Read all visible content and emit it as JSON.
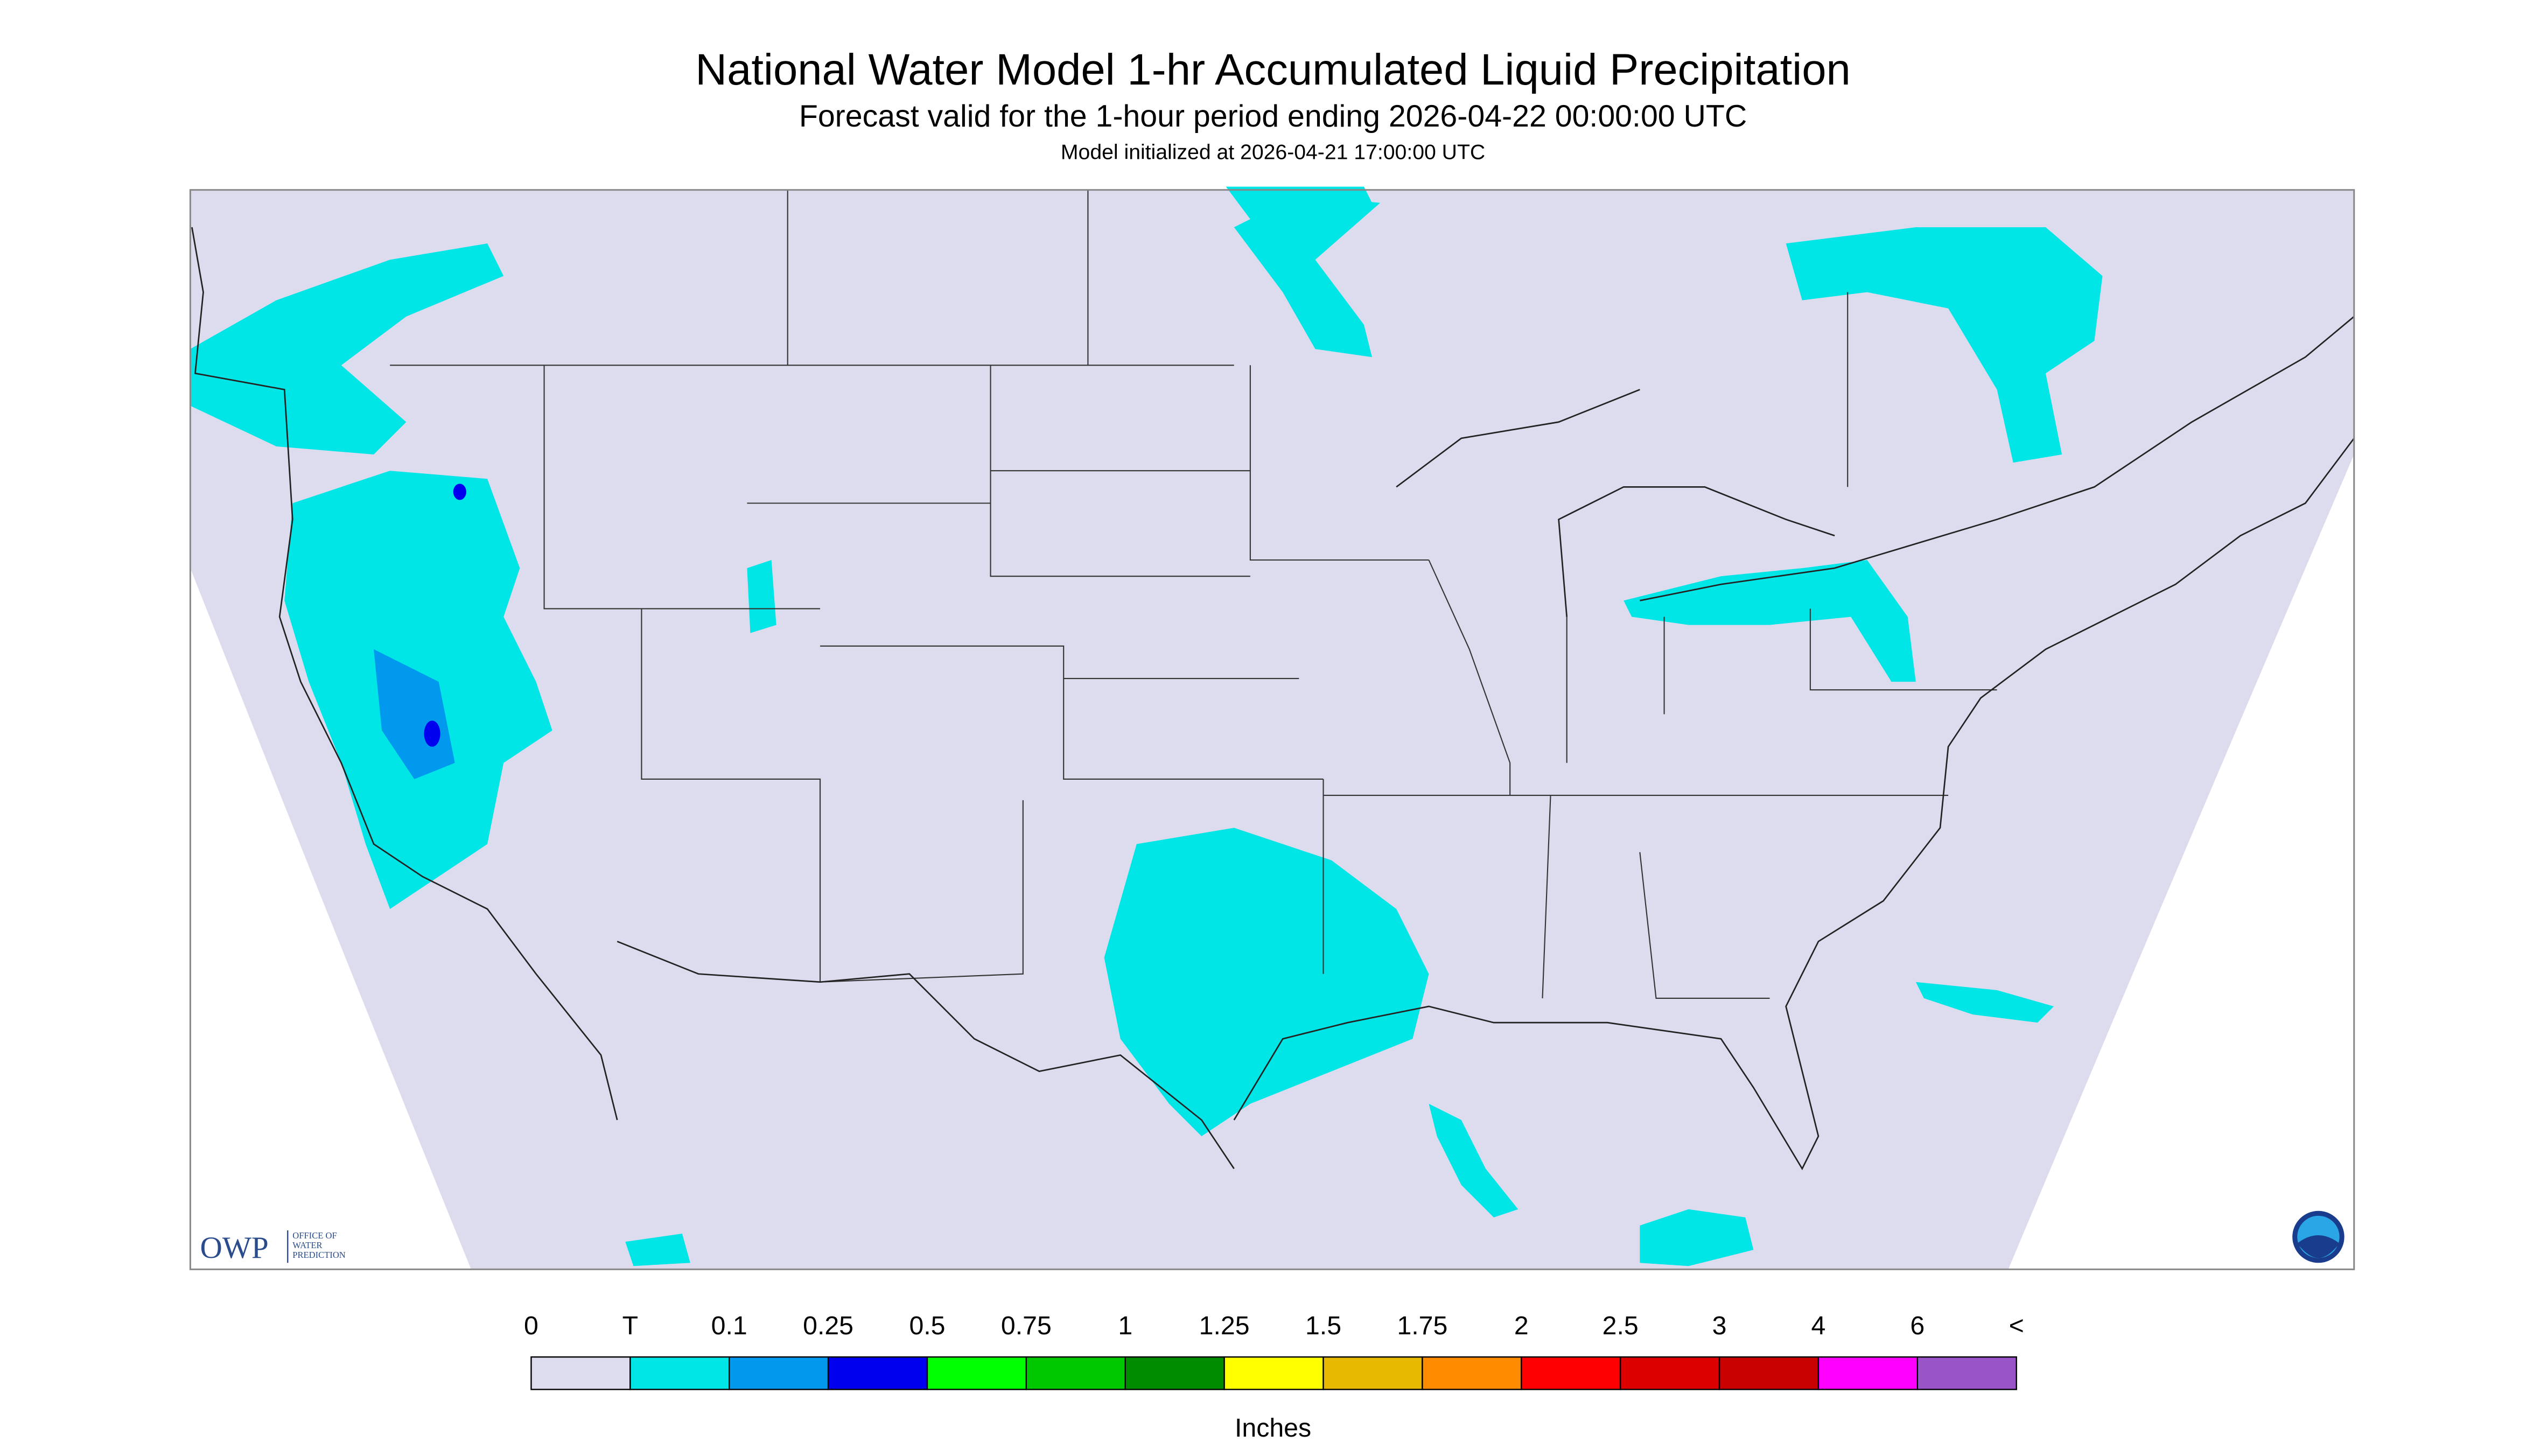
{
  "header": {
    "title": "National Water Model 1-hr Accumulated Liquid Precipitation",
    "subtitle": "Forecast valid for the 1-hour period ending 2026-04-22 00:00:00 UTC",
    "init": "Model initialized at 2026-04-21 17:00:00 UTC"
  },
  "legend": {
    "labels": [
      "0",
      "T",
      "0.1",
      "0.25",
      "0.5",
      "0.75",
      "1",
      "1.25",
      "1.5",
      "1.75",
      "2",
      "2.5",
      "3",
      "4",
      "6",
      "<"
    ],
    "colors": [
      "#dcdcee",
      "#00e5e5",
      "#0099ee",
      "#0000ee",
      "#00ff00",
      "#00c800",
      "#008c00",
      "#ffff00",
      "#e6b800",
      "#ff8c00",
      "#ff0000",
      "#dd0000",
      "#c80000",
      "#ff00ff",
      "#9955c8"
    ],
    "unit": "Inches"
  },
  "logo": {
    "acronym": "OWP",
    "name": [
      "OFFICE OF",
      "WATER",
      "PREDICTION"
    ]
  }
}
